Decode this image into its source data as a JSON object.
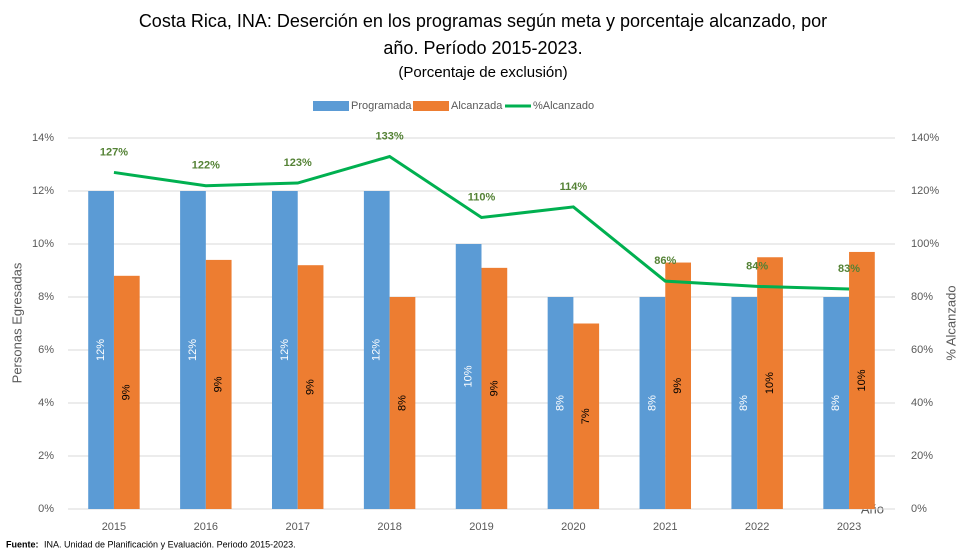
{
  "chart_data": {
    "type": "bar_line",
    "title": [
      "Costa Rica, INA: Deserción en los programas según meta y porcentaje alcanzado, por",
      "año. Período 2015-2023."
    ],
    "subtitle": "(Porcentaje de exclusión)",
    "y_label": "Personas Egresadas",
    "y2_label": "% Alcanzado",
    "x_label": "Año",
    "categories": [
      "2015",
      "2016",
      "2017",
      "2018",
      "2019",
      "2020",
      "2021",
      "2022",
      "2023"
    ],
    "series": [
      {
        "name": "Programada",
        "color": "#5b9bd5",
        "type": "bar",
        "values": [
          12,
          12,
          12,
          12,
          10,
          8,
          8,
          8,
          8
        ],
        "value_labels": [
          "12%",
          "12%",
          "12%",
          "12%",
          "10%",
          "8%",
          "8%",
          "8%",
          "8%"
        ]
      },
      {
        "name": "Alcanzada",
        "color": "#ed7d31",
        "type": "bar",
        "values": [
          8.8,
          9.4,
          9.2,
          8.0,
          9.1,
          7.0,
          9.3,
          9.5,
          9.7
        ],
        "value_labels": [
          "9%",
          "9%",
          "9%",
          "8%",
          "9%",
          "7%",
          "9%",
          "10%",
          "10%"
        ]
      },
      {
        "name": "%Alcanzado",
        "color": "#00b050",
        "type": "line",
        "axis": "y2",
        "values": [
          127,
          122,
          123,
          133,
          110,
          114,
          86,
          84,
          83
        ],
        "value_labels": [
          "127%",
          "122%",
          "123%",
          "133%",
          "110%",
          "114%",
          "86%",
          "84%",
          "83%"
        ]
      }
    ],
    "ylim": [
      0,
      14
    ],
    "yticks": [
      {
        "value": 0,
        "label": "0%"
      },
      {
        "value": 2,
        "label": "2%"
      },
      {
        "value": 4,
        "label": "4%"
      },
      {
        "value": 6,
        "label": "6%"
      },
      {
        "value": 8,
        "label": "8%"
      },
      {
        "value": 10,
        "label": "10%"
      },
      {
        "value": 12,
        "label": "12%"
      },
      {
        "value": 14,
        "label": "14%"
      }
    ],
    "y2lim": [
      0,
      140
    ],
    "y2ticks": [
      {
        "value": 0,
        "label": "0%"
      },
      {
        "value": 20,
        "label": "20%"
      },
      {
        "value": 40,
        "label": "40%"
      },
      {
        "value": 60,
        "label": "60%"
      },
      {
        "value": 80,
        "label": "80%"
      },
      {
        "value": 100,
        "label": "100%"
      },
      {
        "value": 120,
        "label": "120%"
      },
      {
        "value": 140,
        "label": "140%"
      }
    ],
    "grid": true,
    "legend": "top",
    "source_label": "Fuente:",
    "source": "INA. Unidad de Planificación y Evaluación. Periodo 2015-2023."
  }
}
